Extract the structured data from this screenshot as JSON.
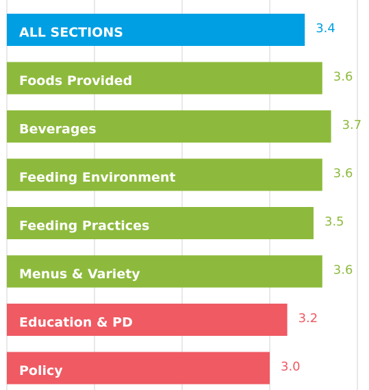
{
  "chart_data": {
    "type": "bar",
    "orientation": "horizontal",
    "categories": [
      "ALL SECTIONS",
      "Foods Provided",
      "Beverages",
      "Feeding Environment",
      "Feeding Practices",
      "Menus & Variety",
      "Education & PD",
      "Policy"
    ],
    "values": [
      3.4,
      3.6,
      3.7,
      3.6,
      3.5,
      3.6,
      3.2,
      3.0
    ],
    "value_labels": [
      "3.4",
      "3.6",
      "3.7",
      "3.6",
      "3.5",
      "3.6",
      "3.2",
      "3.0"
    ],
    "colors": [
      "#009fe3",
      "#8dba3c",
      "#8dba3c",
      "#8dba3c",
      "#8dba3c",
      "#8dba3c",
      "#ef5a63",
      "#ef5a63"
    ],
    "xlim": [
      0,
      4
    ],
    "xticks": [
      0,
      1,
      2,
      3,
      4
    ],
    "grid": true
  }
}
